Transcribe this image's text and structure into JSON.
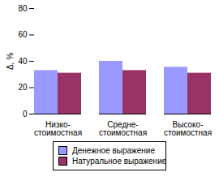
{
  "chart_data": {
    "type": "bar",
    "y_label": "Δ, %",
    "categories": [
      "Низко-\nстоимостная",
      "Средне-\nстоимостная",
      "Высоко-\nстоимостная"
    ],
    "series": [
      {
        "name": "Денежное выражение",
        "color": "#9999ff",
        "values": [
          33,
          40,
          35.5
        ]
      },
      {
        "name": "Натуральное выражение",
        "color": "#993366",
        "values": [
          31,
          33,
          31
        ]
      }
    ],
    "ylim": [
      0,
      80
    ],
    "yticks": [
      0,
      20,
      40,
      60,
      80
    ],
    "grid": false,
    "legend": "bottom"
  }
}
